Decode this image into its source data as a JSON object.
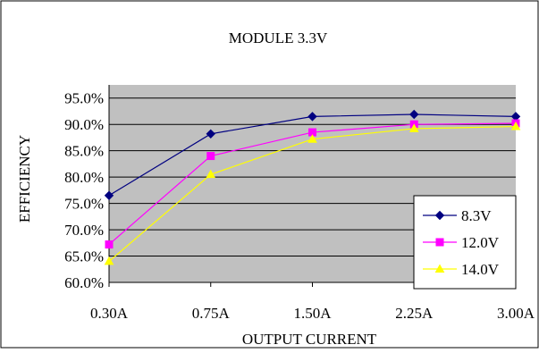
{
  "chart_data": {
    "type": "line",
    "title": "MODULE 3.3V",
    "xlabel": "OUTPUT CURRENT",
    "ylabel": "EFFICIENCY",
    "categories": [
      "0.30A",
      "0.75A",
      "1.50A",
      "2.25A",
      "3.00A"
    ],
    "y_ticks": [
      "60.0%",
      "65.0%",
      "70.0%",
      "75.0%",
      "80.0%",
      "85.0%",
      "90.0%",
      "95.0%"
    ],
    "ylim": [
      60,
      97.5
    ],
    "grid": true,
    "legend_position": "bottom-right",
    "series": [
      {
        "name": "8.3V",
        "values": [
          76.5,
          88.2,
          91.5,
          91.9,
          91.5
        ],
        "color": "#000080",
        "marker": "diamond"
      },
      {
        "name": "12.0V",
        "values": [
          67.2,
          84.0,
          88.5,
          90.0,
          90.2
        ],
        "color": "#ff00ff",
        "marker": "square"
      },
      {
        "name": "14.0V",
        "values": [
          64.0,
          80.5,
          87.2,
          89.2,
          89.6
        ],
        "color": "#ffff00",
        "marker": "triangle"
      }
    ],
    "plot_background": "#c0c0c0"
  }
}
